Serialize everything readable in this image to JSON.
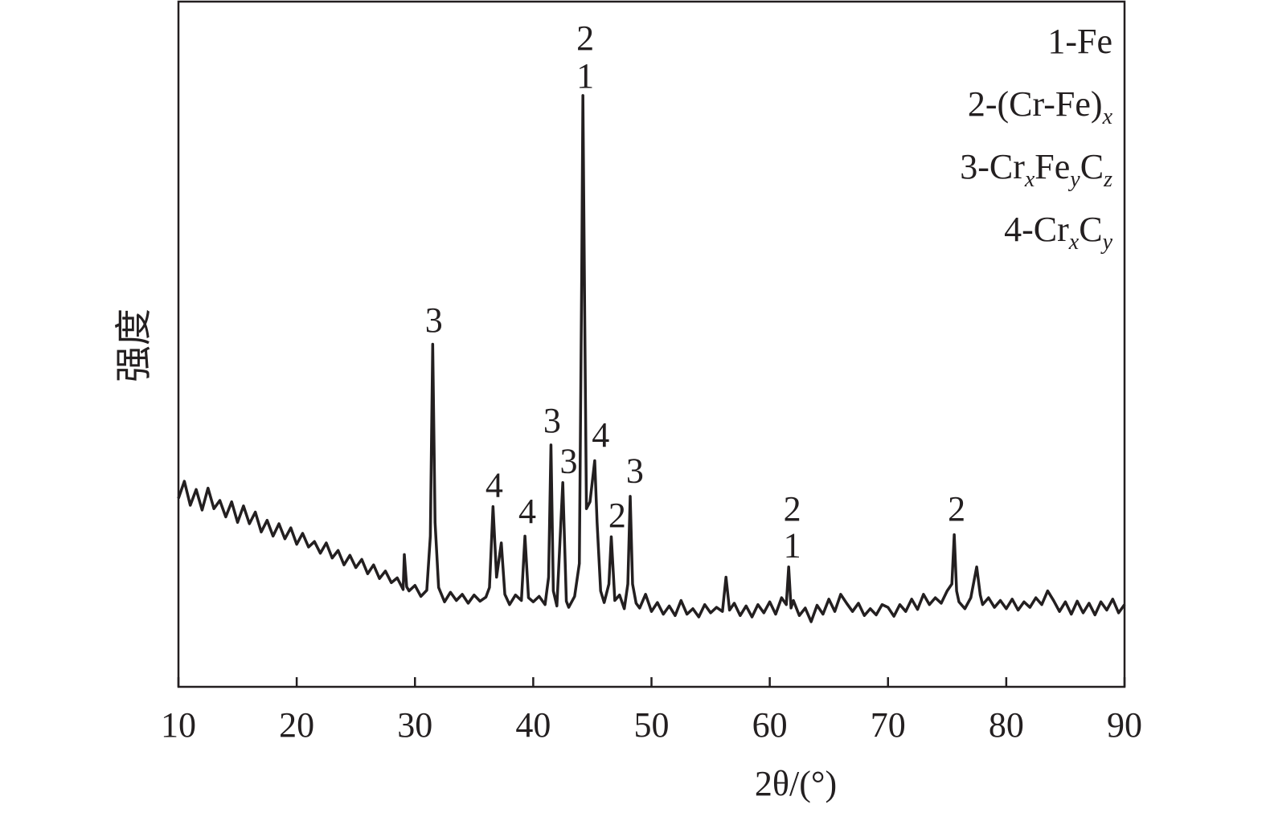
{
  "chart_data": {
    "type": "line",
    "xlabel": "2θ/(°)",
    "ylabel": "强度",
    "xlim": [
      10,
      90
    ],
    "xticks": [
      10,
      20,
      30,
      40,
      50,
      60,
      70,
      80,
      90
    ],
    "ylim": [
      0,
      100
    ],
    "series": [
      {
        "color": "#231f20",
        "x": [
          10,
          10.5,
          11,
          11.5,
          12,
          12.5,
          13,
          13.5,
          14,
          14.5,
          15,
          15.5,
          16,
          16.5,
          17,
          17.5,
          18,
          18.5,
          19,
          19.5,
          20,
          20.5,
          21,
          21.5,
          22,
          22.5,
          23,
          23.5,
          24,
          24.5,
          25,
          25.5,
          26,
          26.5,
          27,
          27.5,
          28,
          28.5,
          29,
          29.1,
          29.3,
          29.5,
          30,
          30.5,
          31,
          31.3,
          31.5,
          31.7,
          32,
          32.5,
          33,
          33.5,
          34,
          34.5,
          35,
          35.5,
          36,
          36.3,
          36.6,
          36.9,
          37.3,
          37.6,
          38,
          38.5,
          39,
          39.3,
          39.6,
          40,
          40.5,
          41,
          41.3,
          41.5,
          41.7,
          42,
          42.5,
          42.8,
          43,
          43.5,
          43.9,
          44.1,
          44.2,
          44.35,
          44.5,
          44.8,
          45,
          45.2,
          45.4,
          45.7,
          46,
          46.4,
          46.6,
          46.9,
          47.3,
          47.7,
          48,
          48.2,
          48.4,
          48.7,
          49,
          49.5,
          50,
          50.5,
          51,
          51.5,
          52,
          52.5,
          53,
          53.5,
          54,
          54.5,
          55,
          55.5,
          56,
          56.3,
          56.6,
          57,
          57.5,
          58,
          58.5,
          59,
          59.5,
          60,
          60.5,
          61,
          61.4,
          61.6,
          61.8,
          62,
          62.5,
          63,
          63.5,
          64,
          64.5,
          65,
          65.5,
          66,
          66.5,
          67,
          67.5,
          68,
          68.5,
          69,
          69.5,
          70,
          70.5,
          71,
          71.5,
          72,
          72.5,
          73,
          73.5,
          74,
          74.5,
          75,
          75.4,
          75.6,
          75.8,
          76,
          76.5,
          77,
          77.5,
          77.8,
          78,
          78.5,
          79,
          79.5,
          80,
          80.5,
          81,
          81.5,
          82,
          82.5,
          83,
          83.5,
          84,
          84.5,
          85,
          85.5,
          86,
          86.5,
          87,
          87.5,
          88,
          88.5,
          89,
          89.5,
          90
        ],
        "values": [
          27.5,
          30,
          26.5,
          28.8,
          25.8,
          29,
          26,
          27.2,
          24.8,
          27,
          24,
          26.4,
          23.8,
          25.5,
          22.6,
          24.3,
          22,
          23.8,
          21.6,
          23.2,
          20.8,
          22.4,
          20.4,
          21.2,
          19.5,
          21,
          18.8,
          19.9,
          17.8,
          19.2,
          17.4,
          18.6,
          16.5,
          17.8,
          15.8,
          16.9,
          15.2,
          15.9,
          14.2,
          19.3,
          14.6,
          14,
          14.8,
          13.2,
          14.1,
          22,
          50,
          24,
          14.5,
          12.4,
          13.8,
          12.6,
          13.5,
          12.2,
          13.4,
          12.5,
          13.1,
          14.5,
          26.3,
          16,
          21,
          13.5,
          12,
          13.4,
          12.6,
          22,
          13,
          12.4,
          13.2,
          12,
          16,
          35.3,
          14,
          11.8,
          29.8,
          12.5,
          11.6,
          13.2,
          18,
          60,
          86.3,
          55,
          26,
          27,
          30,
          33,
          24,
          14,
          12.3,
          15,
          21.9,
          12.6,
          13.4,
          11.4,
          15,
          27.8,
          15,
          12.2,
          11.5,
          13.5,
          11,
          12.3,
          10.6,
          11.8,
          10.4,
          12.6,
          10.6,
          11.4,
          10.2,
          12,
          10.8,
          11.6,
          11,
          16,
          11.2,
          12.2,
          10.4,
          11.8,
          10.2,
          12,
          10.8,
          12.4,
          10.6,
          13,
          12,
          17.5,
          11.5,
          12.6,
          10.4,
          11.5,
          9.5,
          11.9,
          10.6,
          12.8,
          11,
          13.5,
          12.2,
          11,
          12.2,
          10.4,
          11.4,
          10.5,
          12,
          11.6,
          10.3,
          12,
          11,
          12.8,
          11.3,
          13.5,
          12,
          13,
          12.2,
          14,
          15,
          22.2,
          14,
          12.4,
          11.4,
          13,
          17.5,
          13.4,
          12,
          13,
          11.6,
          12.6,
          11.4,
          12.8,
          11.2,
          12.4,
          11.6,
          13,
          12,
          14,
          12.6,
          11,
          12.4,
          10.6,
          12.5,
          10.8,
          12.2,
          10.5,
          12.4,
          11.2,
          12.8,
          10.8,
          12
        ]
      }
    ],
    "annotations": [
      {
        "text": "3",
        "x": 31.6,
        "y": 53.6
      },
      {
        "text": "4",
        "x": 36.7,
        "y": 29.5
      },
      {
        "text": "4",
        "x": 39.5,
        "y": 25.7
      },
      {
        "text": "3",
        "x": 41.6,
        "y": 38.9
      },
      {
        "text": "3",
        "x": 43.0,
        "y": 33
      },
      {
        "text": "2",
        "x": 44.4,
        "y": 94.7
      },
      {
        "text": "1",
        "x": 44.4,
        "y": 89.2
      },
      {
        "text": "4",
        "x": 45.7,
        "y": 36.8
      },
      {
        "text": "2",
        "x": 47.1,
        "y": 25.1
      },
      {
        "text": "3",
        "x": 48.6,
        "y": 31.6
      },
      {
        "text": "2",
        "x": 61.9,
        "y": 26
      },
      {
        "text": "1",
        "x": 61.9,
        "y": 20.7
      },
      {
        "text": "2",
        "x": 75.8,
        "y": 26
      }
    ],
    "legend": [
      [
        {
          "text": "1-Fe"
        }
      ],
      [
        {
          "text": "2-(Cr-Fe)"
        },
        {
          "sub": "x"
        }
      ],
      [
        {
          "text": "3-Cr"
        },
        {
          "sub": "x"
        },
        {
          "text": "Fe"
        },
        {
          "sub": "y"
        },
        {
          "text": "C"
        },
        {
          "sub": "z"
        }
      ],
      [
        {
          "text": "4-Cr"
        },
        {
          "sub": "x"
        },
        {
          "text": "C"
        },
        {
          "sub": "y"
        }
      ]
    ]
  }
}
